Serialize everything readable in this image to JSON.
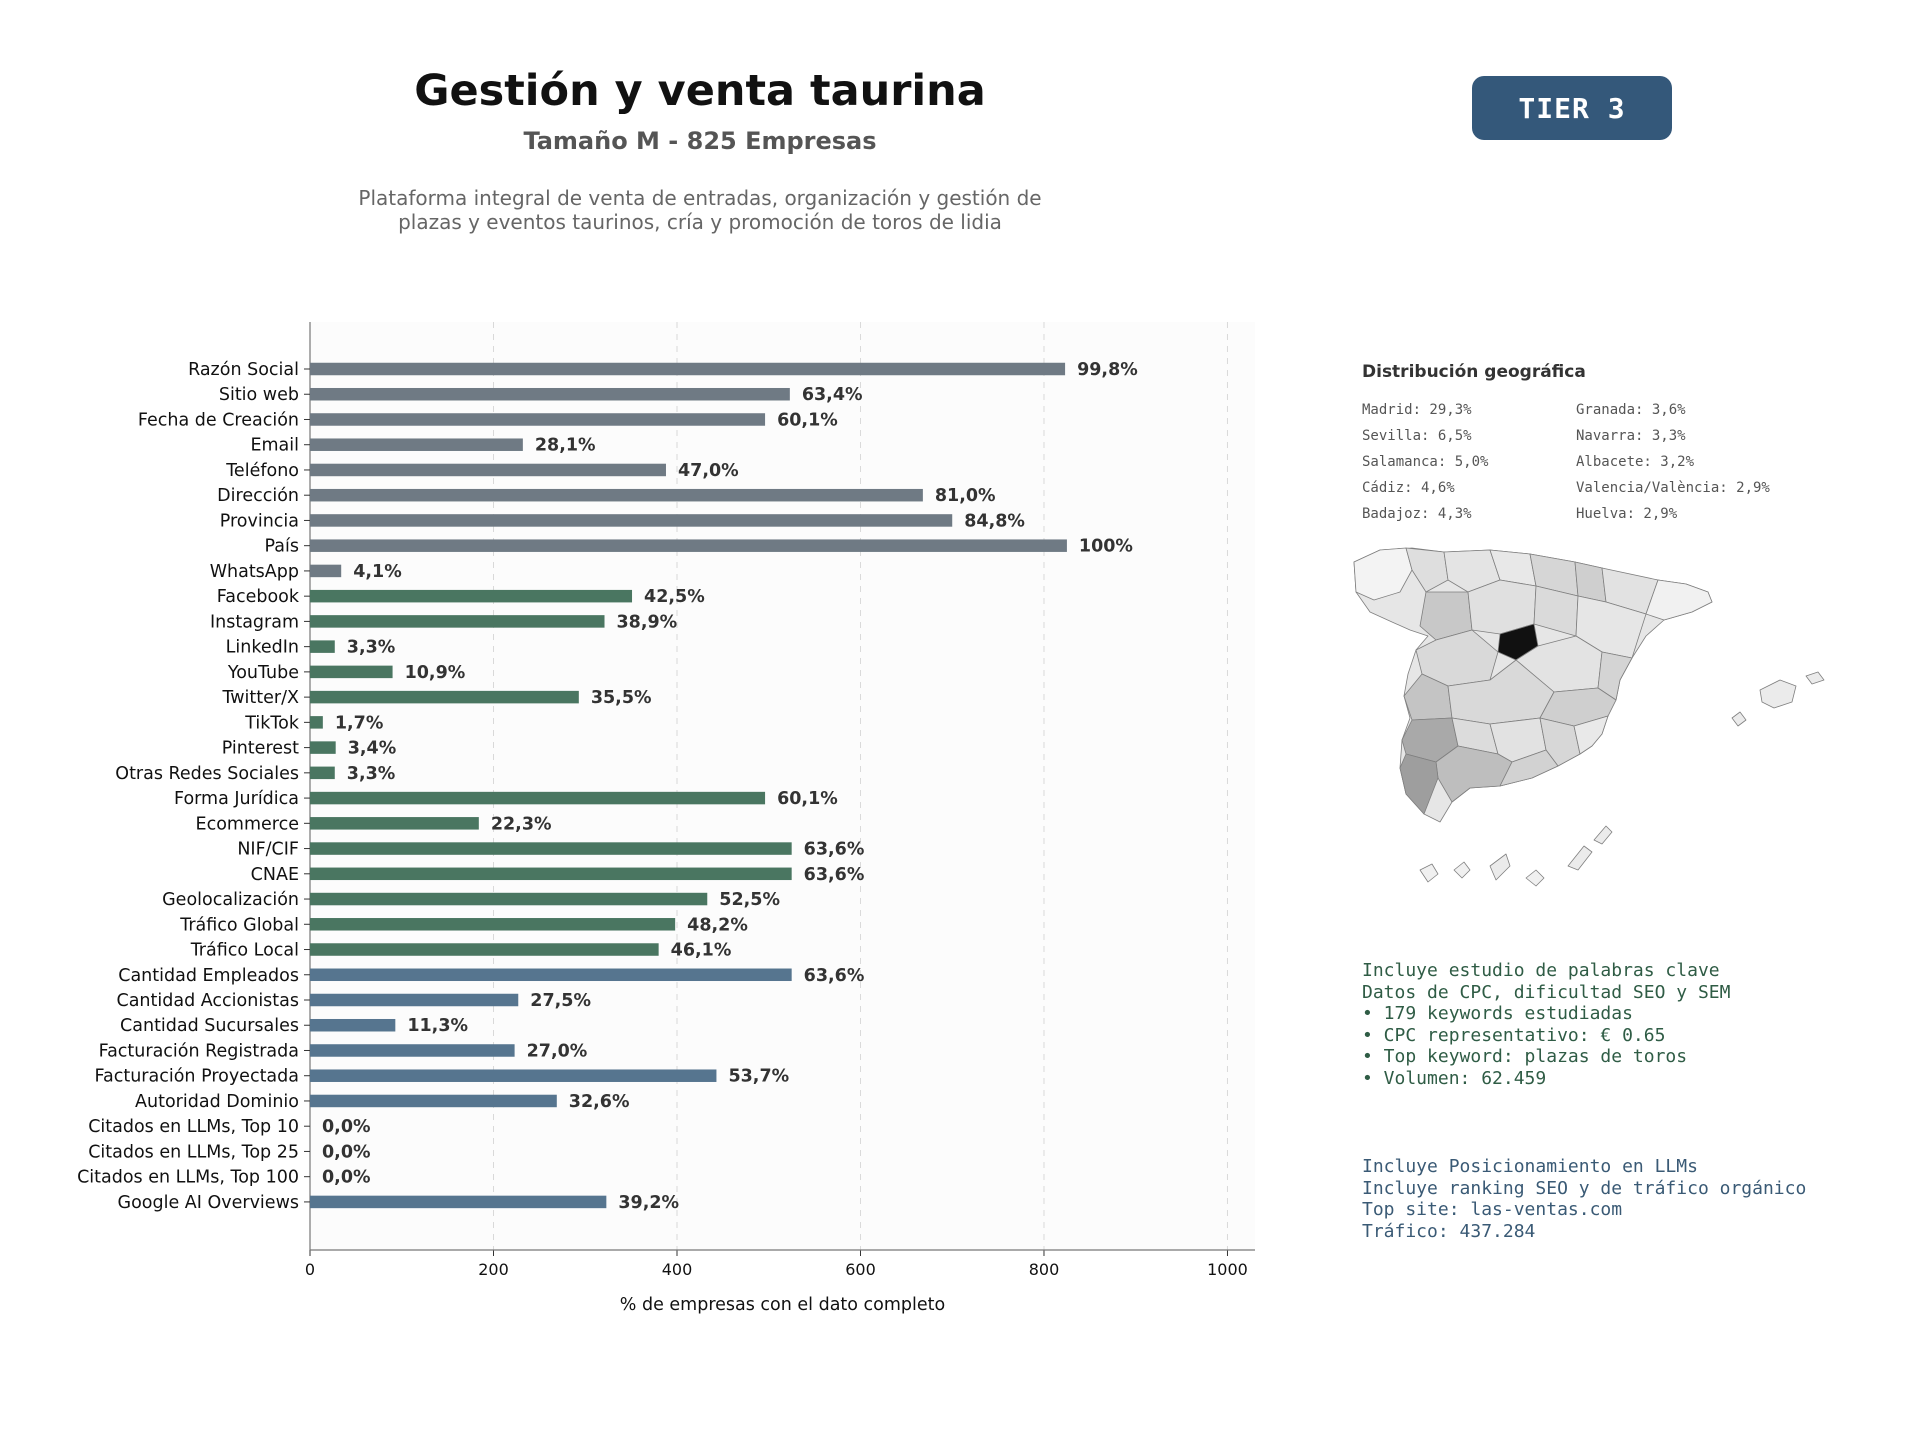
{
  "header": {
    "title": "Gestión y venta taurina",
    "subtitle": "Tamaño M - 825 Empresas",
    "description_lines": [
      "Plataforma integral de venta de entradas, organización y gestión de",
      "plazas y eventos taurinos, cría y promoción de toros de lidia"
    ]
  },
  "tier_badge": {
    "label": "TIER 3",
    "color": "#34587a"
  },
  "chart_data": {
    "type": "bar",
    "orientation": "horizontal",
    "title": "",
    "xlabel": "% de empresas con el dato completo",
    "ylabel": "",
    "xlim": [
      0,
      1030
    ],
    "xticks": [
      0,
      200,
      400,
      600,
      800,
      1000
    ],
    "grid": "vertical dashed",
    "categories": [
      "Razón Social",
      "Sitio web",
      "Fecha de Creación",
      "Email",
      "Teléfono",
      "Dirección",
      "Provincia",
      "País",
      "WhatsApp",
      "Facebook",
      "Instagram",
      "LinkedIn",
      "YouTube",
      "Twitter/X",
      "TikTok",
      "Pinterest",
      "Otras Redes Sociales",
      "Forma Jurídica",
      "Ecommerce",
      "NIF/CIF",
      "CNAE",
      "Geolocalización",
      "Tráfico Global",
      "Tráfico Local",
      "Cantidad Empleados",
      "Cantidad Accionistas",
      "Cantidad Sucursales",
      "Facturación Registrada",
      "Facturación Proyectada",
      "Autoridad Dominio",
      "Citados en LLMs, Top 10",
      "Citados en LLMs, Top 25",
      "Citados en LLMs, Top 100",
      "Google AI Overviews"
    ],
    "values": [
      823,
      523,
      496,
      232,
      388,
      668,
      700,
      825,
      34,
      351,
      321,
      27,
      90,
      293,
      14,
      28,
      27,
      496,
      184,
      525,
      525,
      433,
      398,
      380,
      525,
      227,
      93,
      223,
      443,
      269,
      0,
      0,
      0,
      323
    ],
    "labels": [
      "99,8%",
      "63,4%",
      "60,1%",
      "28,1%",
      "47,0%",
      "81,0%",
      "84,8%",
      "100%",
      "4,1%",
      "42,5%",
      "38,9%",
      "3,3%",
      "10,9%",
      "35,5%",
      "1,7%",
      "3,4%",
      "3,3%",
      "60,1%",
      "22,3%",
      "63,6%",
      "63,6%",
      "52,5%",
      "48,2%",
      "46,1%",
      "63,6%",
      "27,5%",
      "11,3%",
      "27,0%",
      "53,7%",
      "32,6%",
      "0,0%",
      "0,0%",
      "0,0%",
      "39,2%"
    ],
    "groups": [
      {
        "color": "#6f7a84",
        "count": 9
      },
      {
        "color": "#4a7661",
        "count": 15
      },
      {
        "color": "#56758f",
        "count": 10
      }
    ]
  },
  "geo": {
    "title": "Distribución geográfica",
    "items": [
      "Madrid: 29,3%",
      "Granada: 3,6%",
      "Sevilla: 6,5%",
      "Navarra: 3,3%",
      "Salamanca: 5,0%",
      "Albacete: 3,2%",
      "Cádiz: 4,6%",
      "Valencia/València: 2,9%",
      "Badajoz: 4,3%",
      "Huelva: 2,9%"
    ]
  },
  "keywords_info": {
    "color": "#2f5c45",
    "lines": [
      "Incluye estudio de palabras clave",
      "Datos de CPC, dificultad SEO y SEM",
      "",
      "• 179 keywords estudiadas",
      "• CPC representativo: € 0.65",
      "• Top keyword: plazas de toros",
      "• Volumen: 62.459"
    ]
  },
  "llm_info": {
    "color": "#3a5a75",
    "lines": [
      "Incluye Posicionamiento en LLMs",
      "Incluye ranking SEO y de tráfico orgánico",
      "",
      "Top site: las-ventas.com",
      "Tráfico: 437.284"
    ]
  },
  "map": {
    "icon": "spain-provinces-map-icon",
    "highlight_color": "#111111"
  }
}
